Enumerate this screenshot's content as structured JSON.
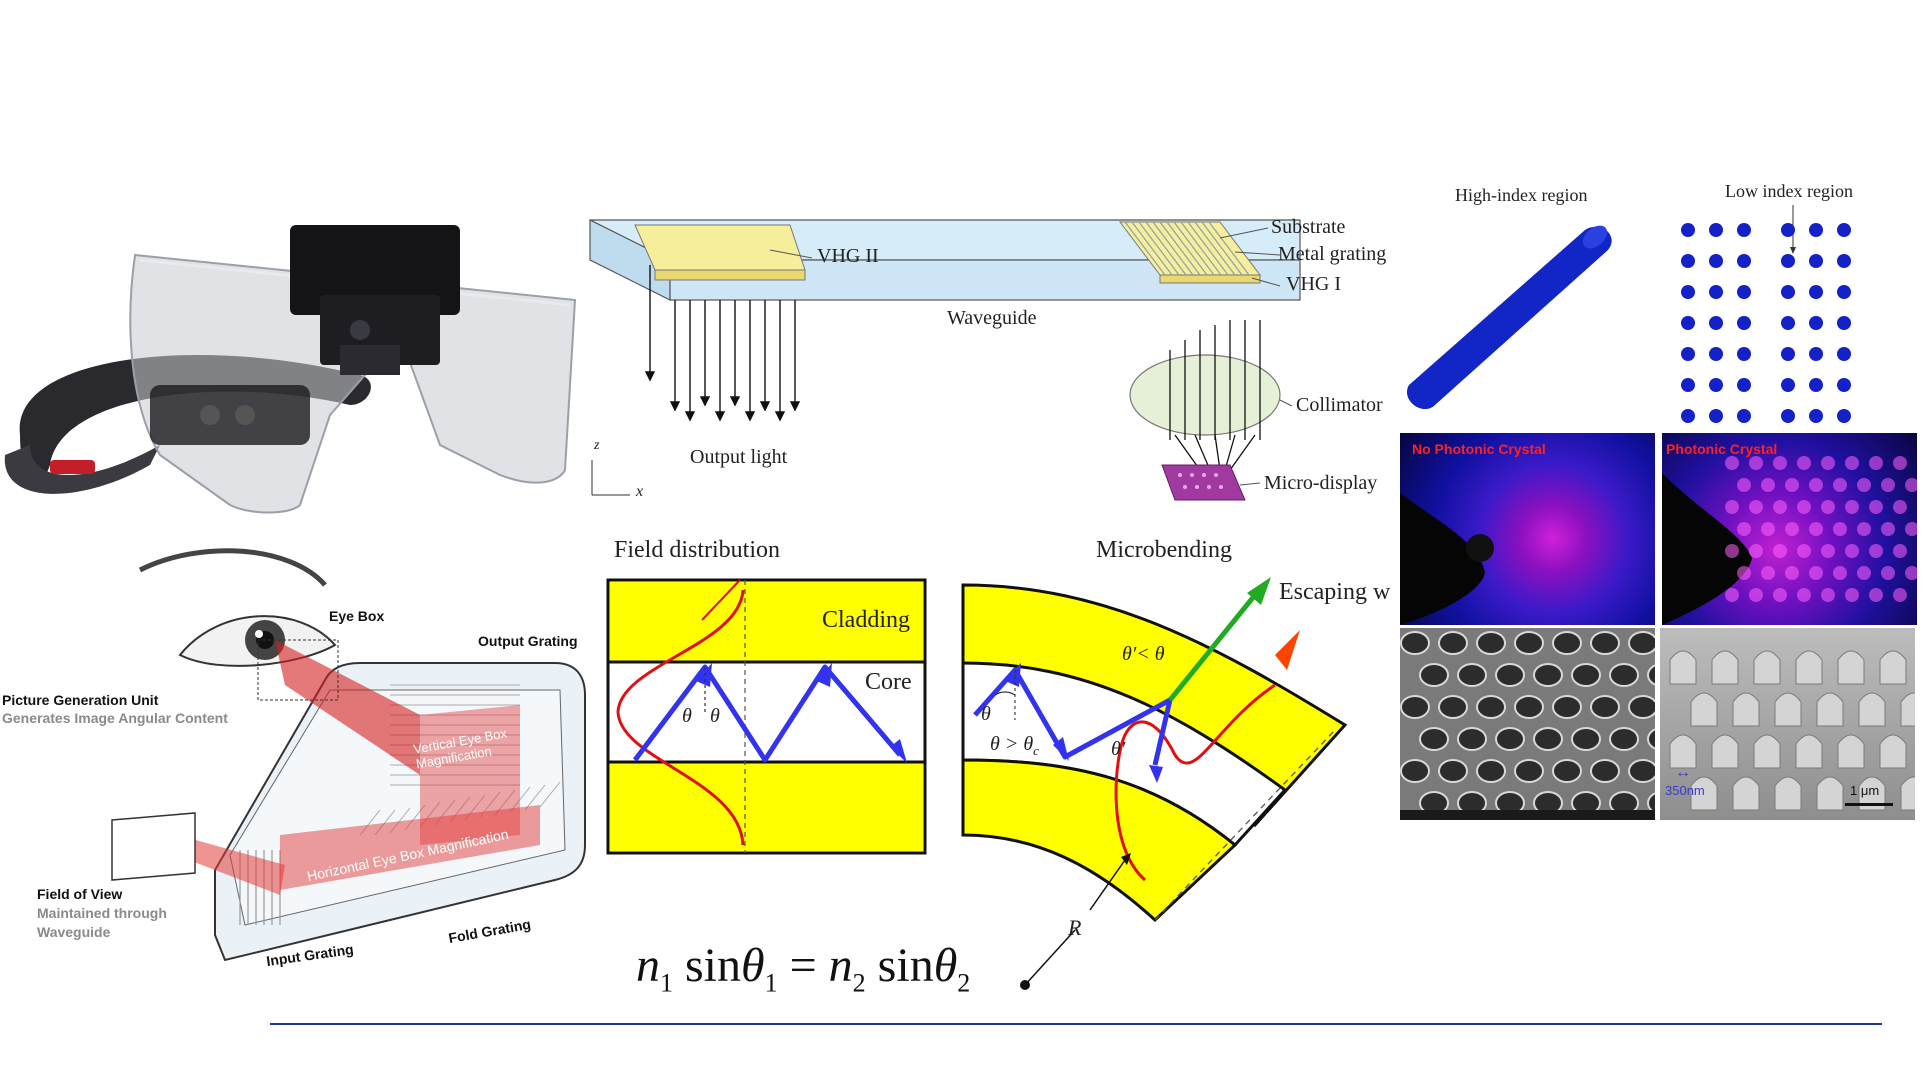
{
  "waveguide_diagram": {
    "vhg2": "VHG II",
    "substrate": "Substrate",
    "metal_grating": "Metal grating",
    "vhg1": "VHG I",
    "waveguide": "Waveguide",
    "collimator": "Collimator",
    "micro_display": "Micro-display",
    "output_light": "Output light",
    "axis_z": "z",
    "axis_x": "x"
  },
  "eye_diagram": {
    "eye_box": "Eye Box",
    "output_grating": "Output Grating",
    "pgu_title": "Picture Generation Unit",
    "pgu_sub": "Generates Image Angular Content",
    "vertical_mag": "Vertical Eye Box Magnification",
    "horizontal_mag": "Horizontal Eye Box Magnification",
    "fov_title": "Field of View",
    "fov_sub1": "Maintained through",
    "fov_sub2": "Waveguide",
    "input_grating": "Input Grating",
    "fold_grating": "Fold Grating"
  },
  "fiber_diagram": {
    "field_distribution": "Field distribution",
    "cladding": "Cladding",
    "core": "Core",
    "theta": "θ",
    "microbending": "Microbending",
    "escaping": "Escaping w",
    "theta_prime_lt": "θ′< θ",
    "theta_gt_c": "θ > θ",
    "theta_c_sub": "c",
    "theta_prime": "θ′",
    "radius": "R",
    "formula": {
      "n": "n",
      "sin": "sin",
      "theta": "θ",
      "eq": "=",
      "sub1": "1",
      "sub2": "2"
    }
  },
  "photonic": {
    "high_index": "High-index region",
    "low_index": "Low index region",
    "no_pc": "No Photonic Crystal",
    "pc": "Photonic Crystal",
    "scale_350": "350nm",
    "scale_1um": "1 μm"
  },
  "colors": {
    "divider": "#1d3a8a",
    "waveguide_fill": "#d6ecf8",
    "vhg_fill": "#f6ee9a",
    "cladding_yellow": "#ffff00",
    "ray_blue": "#3333ee",
    "field_red": "#e01010",
    "dot_blue": "#1420c8",
    "pc_red": "#ff2020"
  }
}
